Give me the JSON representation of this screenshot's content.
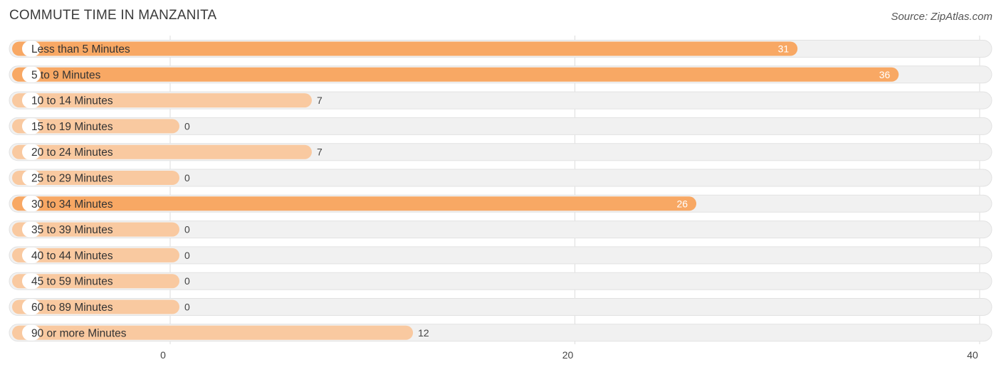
{
  "header": {
    "title": "COMMUTE TIME IN MANZANITA",
    "source": "Source: ZipAtlas.com"
  },
  "colors": {
    "bar_strong": "#f8a864",
    "bar_light": "#f9c9a0",
    "row_bg": "#f1f1f1",
    "row_border": "#e2e2e2",
    "grid": "#dddddd"
  },
  "chart_data": {
    "type": "bar",
    "orientation": "horizontal",
    "title": "COMMUTE TIME IN MANZANITA",
    "categories": [
      "Less than 5 Minutes",
      "5 to 9 Minutes",
      "10 to 14 Minutes",
      "15 to 19 Minutes",
      "20 to 24 Minutes",
      "25 to 29 Minutes",
      "30 to 34 Minutes",
      "35 to 39 Minutes",
      "40 to 44 Minutes",
      "45 to 59 Minutes",
      "60 to 89 Minutes",
      "90 or more Minutes"
    ],
    "values": [
      31,
      36,
      7,
      0,
      7,
      0,
      26,
      0,
      0,
      0,
      0,
      12
    ],
    "xlim": [
      0,
      40
    ],
    "xticks": [
      0,
      20,
      40
    ],
    "grid": true
  }
}
